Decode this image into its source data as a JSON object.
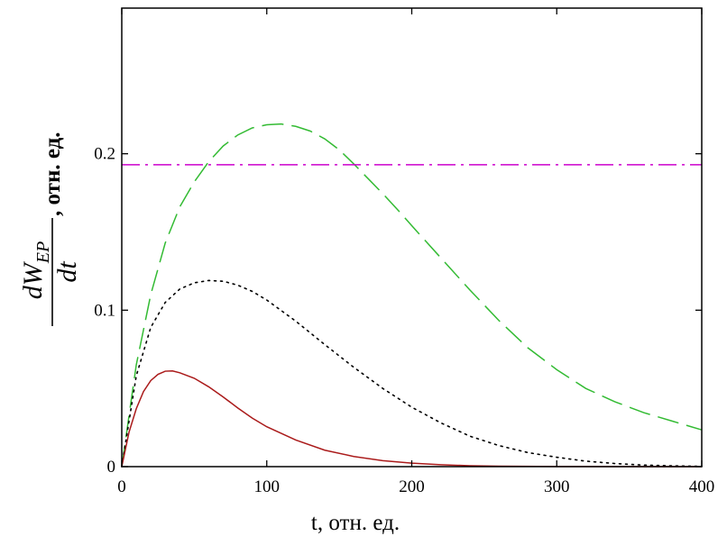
{
  "chart_data": {
    "type": "line",
    "xlabel": "t, отн. ед.",
    "ylabel": {
      "numerator": "dW",
      "numerator_subscript": "EP",
      "denominator": "dt",
      "unit": ", отн. ед."
    },
    "xlim": [
      0,
      400
    ],
    "ylim": [
      0,
      0.3
    ],
    "x_ticks": [
      0,
      100,
      200,
      300,
      400
    ],
    "x_tick_labels": [
      "0",
      "100",
      "200",
      "300",
      "400"
    ],
    "y_ticks": [
      0,
      0.1,
      0.2
    ],
    "y_tick_labels": [
      "0",
      "0.1",
      "0.2"
    ],
    "grid": false,
    "series": [
      {
        "style": "dashed",
        "color": "#33bb33",
        "points": [
          [
            0,
            0
          ],
          [
            10,
            0.065
          ],
          [
            20,
            0.11
          ],
          [
            30,
            0.143
          ],
          [
            40,
            0.166
          ],
          [
            50,
            0.182
          ],
          [
            60,
            0.195
          ],
          [
            70,
            0.205
          ],
          [
            80,
            0.212
          ],
          [
            90,
            0.2165
          ],
          [
            100,
            0.2185
          ],
          [
            110,
            0.219
          ],
          [
            120,
            0.2175
          ],
          [
            130,
            0.2145
          ],
          [
            140,
            0.2095
          ],
          [
            150,
            0.2025
          ],
          [
            160,
            0.1935
          ],
          [
            170,
            0.184
          ],
          [
            180,
            0.1745
          ],
          [
            190,
            0.1645
          ],
          [
            200,
            0.154
          ],
          [
            220,
            0.1335
          ],
          [
            240,
            0.113
          ],
          [
            260,
            0.0935
          ],
          [
            280,
            0.076
          ],
          [
            300,
            0.062
          ],
          [
            320,
            0.05
          ],
          [
            340,
            0.0415
          ],
          [
            360,
            0.0345
          ],
          [
            380,
            0.029
          ],
          [
            400,
            0.0235
          ]
        ]
      },
      {
        "style": "dotted",
        "color": "#000000",
        "points": [
          [
            0,
            0
          ],
          [
            10,
            0.058
          ],
          [
            20,
            0.089
          ],
          [
            30,
            0.105
          ],
          [
            40,
            0.1135
          ],
          [
            50,
            0.1175
          ],
          [
            60,
            0.119
          ],
          [
            70,
            0.1185
          ],
          [
            80,
            0.116
          ],
          [
            90,
            0.112
          ],
          [
            100,
            0.1065
          ],
          [
            120,
            0.093
          ],
          [
            140,
            0.078
          ],
          [
            160,
            0.0635
          ],
          [
            180,
            0.05
          ],
          [
            200,
            0.038
          ],
          [
            220,
            0.028
          ],
          [
            240,
            0.0195
          ],
          [
            260,
            0.0135
          ],
          [
            280,
            0.009
          ],
          [
            300,
            0.006
          ],
          [
            320,
            0.0035
          ],
          [
            340,
            0.002
          ],
          [
            360,
            0.001
          ],
          [
            380,
            0.0005
          ],
          [
            400,
            0.0002
          ]
        ]
      },
      {
        "style": "solid",
        "color": "#aa1a1a",
        "points": [
          [
            0,
            0
          ],
          [
            5,
            0.022
          ],
          [
            10,
            0.037
          ],
          [
            15,
            0.048
          ],
          [
            20,
            0.055
          ],
          [
            25,
            0.059
          ],
          [
            30,
            0.061
          ],
          [
            35,
            0.0612
          ],
          [
            40,
            0.06
          ],
          [
            50,
            0.0565
          ],
          [
            60,
            0.051
          ],
          [
            70,
            0.0445
          ],
          [
            80,
            0.0375
          ],
          [
            90,
            0.031
          ],
          [
            100,
            0.0255
          ],
          [
            120,
            0.017
          ],
          [
            140,
            0.0105
          ],
          [
            160,
            0.0065
          ],
          [
            180,
            0.0038
          ],
          [
            200,
            0.0022
          ],
          [
            220,
            0.0012
          ],
          [
            240,
            0.0006
          ],
          [
            260,
            0.0003
          ],
          [
            300,
            0.0001
          ],
          [
            400,
            0.0
          ]
        ]
      },
      {
        "style": "dash-dot",
        "color": "#cc00cc",
        "points": [
          [
            0,
            0.193
          ],
          [
            400,
            0.193
          ]
        ]
      }
    ]
  }
}
